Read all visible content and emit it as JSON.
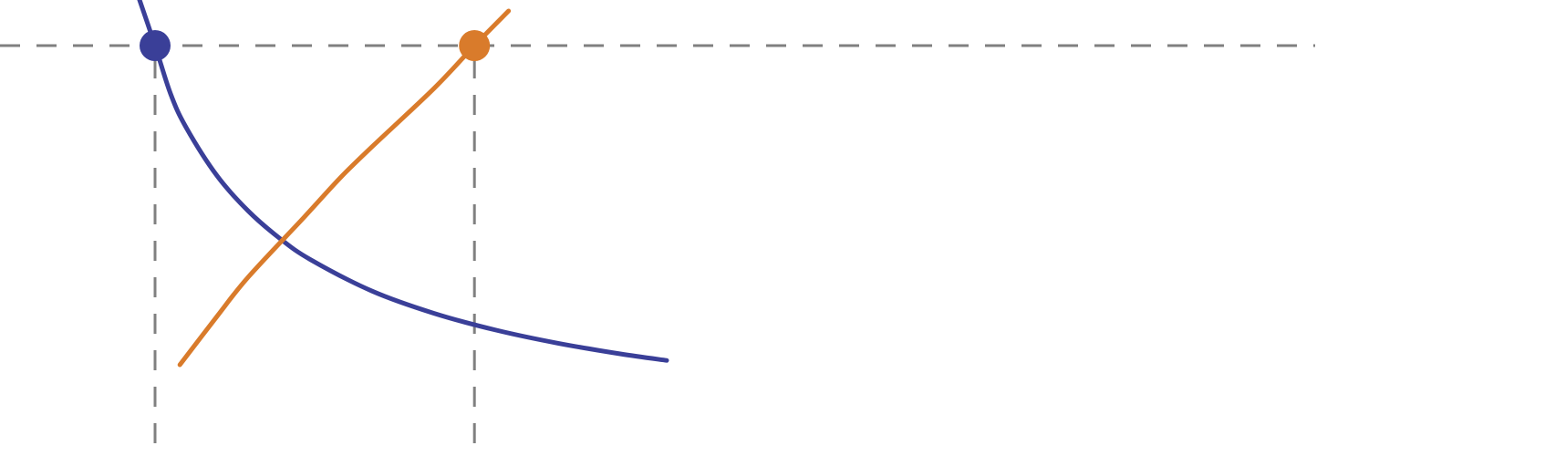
{
  "chart_data": {
    "type": "line",
    "title": "",
    "xlabel": "",
    "ylabel": "",
    "grid": false,
    "legend": "none",
    "xlim": [
      0,
      4.6
    ],
    "ylim": [
      0,
      1.275
    ],
    "reference_level": 1.125,
    "series": [
      {
        "color": "#3a3f98",
        "x": [
          0.44,
          0.5,
          0.55,
          0.6,
          0.7,
          0.8,
          0.9,
          1.0,
          1.2,
          1.4,
          1.6,
          1.8,
          2.0,
          2.15
        ],
        "values": [
          1.275,
          1.125,
          0.993,
          0.901,
          0.768,
          0.672,
          0.598,
          0.539,
          0.452,
          0.391,
          0.345,
          0.309,
          0.28,
          0.262
        ],
        "marker": {
          "x": 0.5,
          "y": 1.125
        }
      },
      {
        "color": "#d97b2b",
        "x": [
          0.58,
          0.7,
          0.8,
          0.98,
          1.1,
          1.2,
          1.4,
          1.53,
          1.64
        ],
        "values": [
          0.25,
          0.383,
          0.49,
          0.654,
          0.765,
          0.848,
          1.008,
          1.125,
          1.22
        ],
        "marker": {
          "x": 1.53,
          "y": 1.125
        }
      }
    ]
  }
}
